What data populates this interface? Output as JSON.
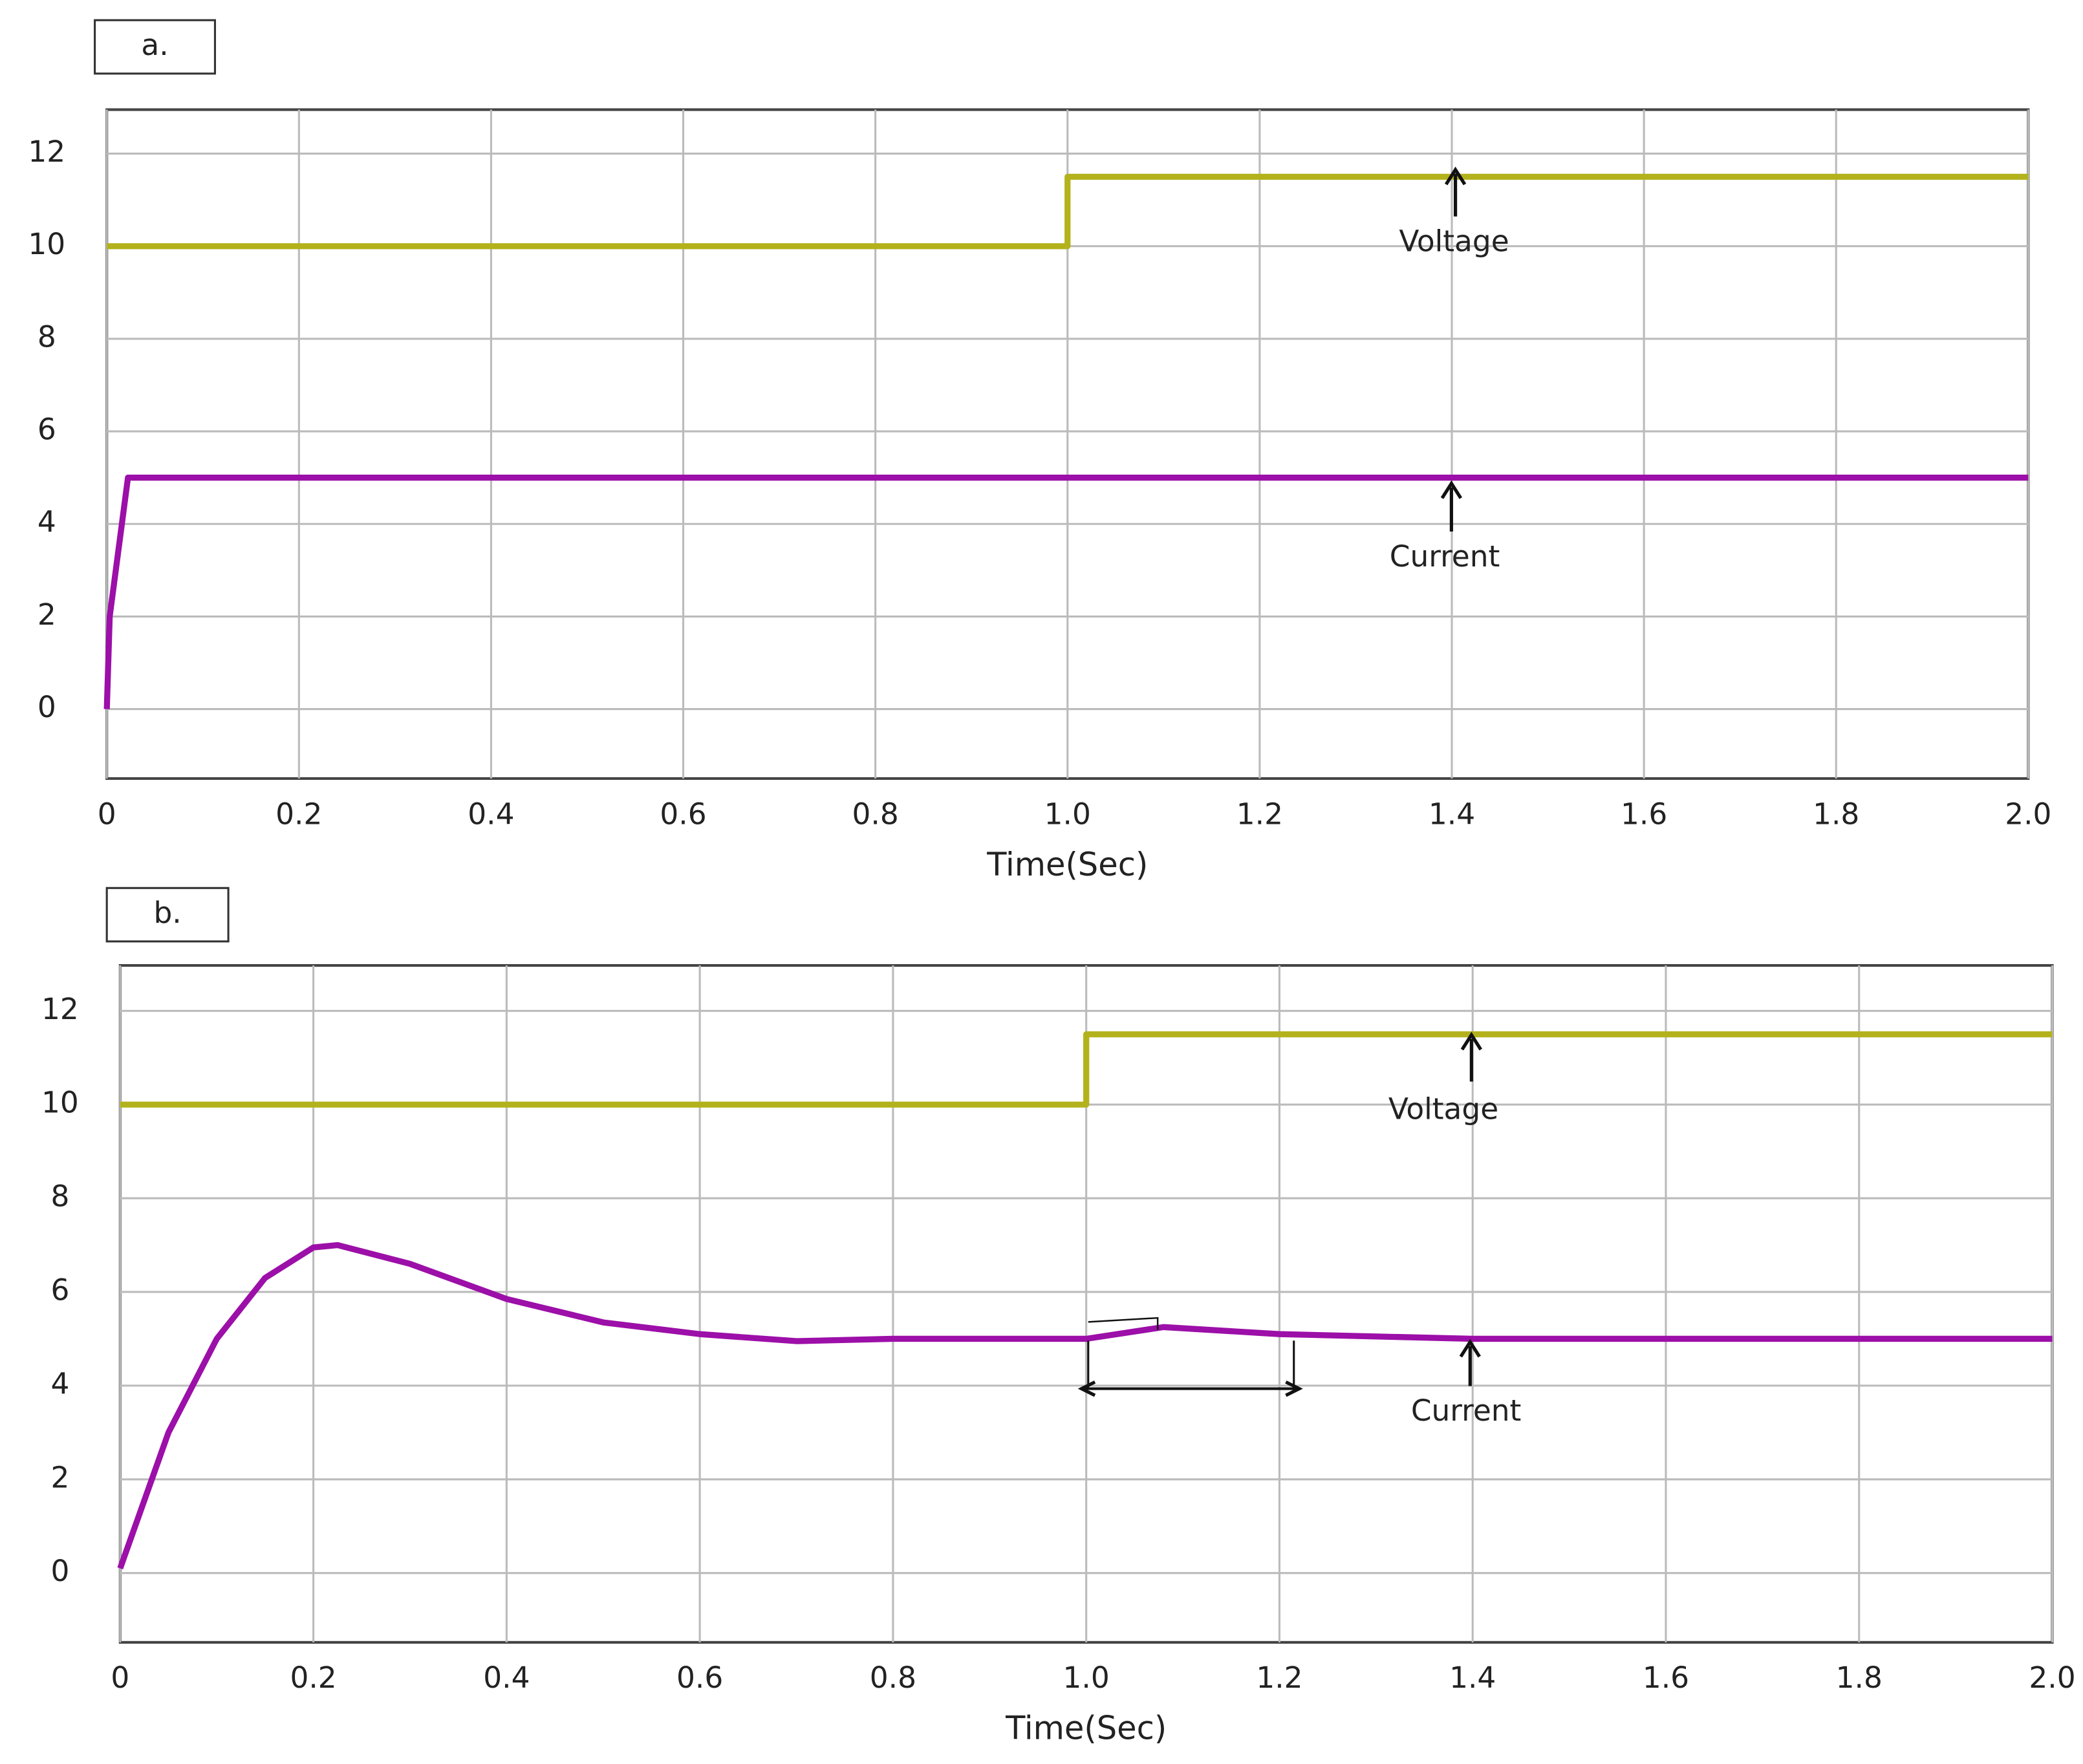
{
  "chart_data": [
    {
      "type": "line",
      "label": "a.",
      "xlabel": "Time(Sec)",
      "x": [
        0,
        0.003,
        0.022,
        1,
        1,
        2
      ],
      "series": [
        {
          "name": "Voltage",
          "color": "#b3b21c",
          "values": [
            10,
            10,
            10,
            10,
            11.5,
            11.5
          ]
        },
        {
          "name": "Current",
          "color": "#9c0fa8",
          "values": [
            0,
            2,
            5,
            5,
            5,
            5
          ]
        }
      ],
      "xlim": [
        0,
        2
      ],
      "ylim": [
        -1.5,
        12.95
      ],
      "xticks": [
        0,
        0.2,
        0.4,
        0.6,
        0.8,
        {
          "value": 1,
          "label": "1.0"
        },
        1.2,
        1.4,
        1.6,
        1.8,
        {
          "value": 2,
          "label": "2.0"
        }
      ],
      "yticks": [
        0,
        2,
        4,
        6,
        8,
        10,
        12
      ],
      "grid": true
    },
    {
      "type": "line",
      "label": "b.",
      "xlabel": "Time(Sec)",
      "x": [
        0,
        0.05,
        0.1,
        0.15,
        0.2,
        0.225,
        0.3,
        0.4,
        0.5,
        0.6,
        0.7,
        0.8,
        1,
        1,
        1.08,
        1.2,
        1.4,
        2
      ],
      "series": [
        {
          "name": "Voltage",
          "color": "#b3b21c",
          "values": [
            10,
            10,
            10,
            10,
            10,
            10,
            10,
            10,
            10,
            10,
            10,
            10,
            10,
            11.5,
            11.5,
            11.5,
            11.5,
            11.5
          ]
        },
        {
          "name": "Current",
          "color": "#9c0fa8",
          "values": [
            0.1,
            3.0,
            5.0,
            6.3,
            6.95,
            7.0,
            6.6,
            5.85,
            5.35,
            5.1,
            4.95,
            5.0,
            5.0,
            5.0,
            5.25,
            5.1,
            5.0,
            5.0
          ]
        }
      ],
      "xlim": [
        0,
        2
      ],
      "ylim": [
        -1.48,
        12.97
      ],
      "xticks": [
        0,
        0.2,
        0.4,
        0.6,
        0.8,
        {
          "value": 1,
          "label": "1.0"
        },
        1.2,
        1.4,
        1.6,
        1.8,
        {
          "value": 2,
          "label": "2.0"
        }
      ],
      "yticks": [
        0,
        2,
        4,
        6,
        8,
        10,
        12
      ],
      "grid": true
    }
  ]
}
